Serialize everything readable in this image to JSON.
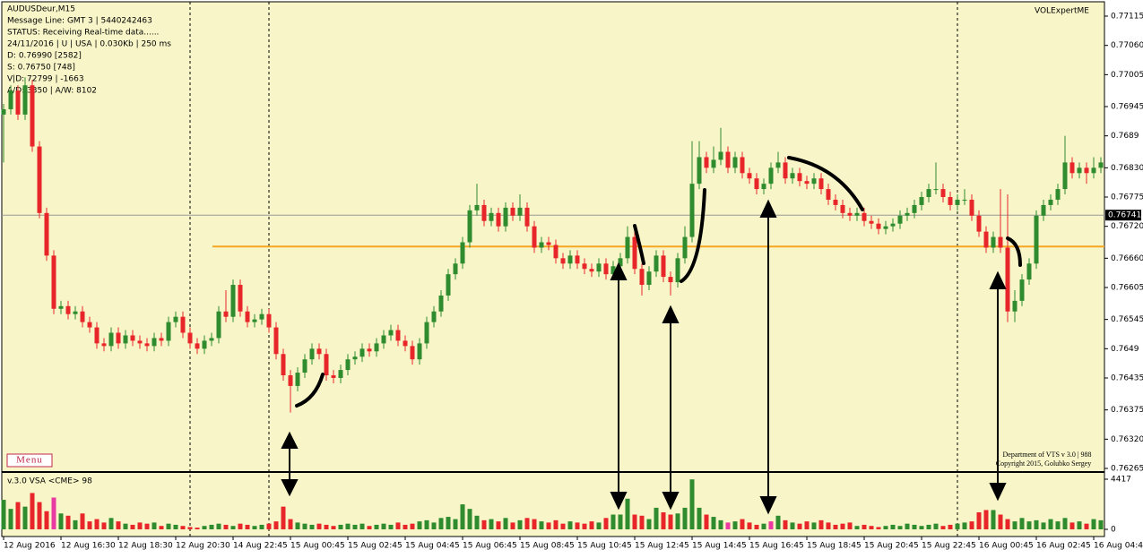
{
  "chart_data": {
    "type": "candlestick",
    "symbol": "AUDUSDeur,M15",
    "expert": "VOLExpertME",
    "info_lines": [
      "Message Line: GMT 3 | 5440242463",
      "STATUS:  Receiving Real-time data......",
      "24/11/2016 | U | USA | 0.030Kb | 250 ms",
      "D: 0.76990  [2582]",
      "S: 0.76750  [748]",
      "V|D: 72799 | -1663",
      "A/D: 3350 | A/W: 8102"
    ],
    "menu": "Menu",
    "credits": [
      "Department of VTS  v 3.0 | 988",
      "Copyright 2015, Golubko Sergey"
    ],
    "volume_title": "v.3.0 VSA  <CME> 98",
    "x_labels": [
      "12 Aug 2016",
      "12 Aug 16:30",
      "12 Aug 18:30",
      "12 Aug 20:30",
      "14 Aug 22:45",
      "15 Aug 00:45",
      "15 Aug 02:45",
      "15 Aug 04:45",
      "15 Aug 06:45",
      "15 Aug 08:45",
      "15 Aug 10:45",
      "15 Aug 12:45",
      "15 Aug 14:45",
      "15 Aug 16:45",
      "15 Aug 18:45",
      "15 Aug 20:45",
      "15 Aug 22:45",
      "16 Aug 00:45",
      "16 Aug 02:45",
      "16 Aug 04:45"
    ],
    "ylim": [
      0.76265,
      0.77115
    ],
    "yticks": [
      0.77115,
      {
        "value": 0.7706,
        "label": "0.77060"
      },
      0.77005,
      0.76945,
      0.7689,
      {
        "value": 0.7683,
        "label": "0.76830"
      },
      0.76775,
      {
        "value": 0.7672,
        "label": "0.76720"
      },
      {
        "value": 0.7666,
        "label": "0.76660"
      },
      0.76605,
      0.76545,
      0.7649,
      0.76435,
      0.76375,
      {
        "value": 0.7632,
        "label": "0.76320"
      },
      0.76265
    ],
    "current_price": 0.76741,
    "level_line": 0.76682,
    "level_color": "#f5a623",
    "up_color": "#2e8b2e",
    "down_color": "#e8262a",
    "highlight_color": "#e83aa0",
    "highlight_bars": [
      7,
      101,
      107
    ],
    "open": [
      0.7693,
      0.7694,
      0.76975,
      0.7693,
      0.76985,
      0.7687,
      0.76745,
      0.76665,
      0.76565,
      0.7657,
      0.76555,
      0.7656,
      0.7654,
      0.7653,
      0.765,
      0.76495,
      0.7652,
      0.765,
      0.76515,
      0.76505,
      0.765,
      0.76495,
      0.7651,
      0.76505,
      0.7654,
      0.7655,
      0.7652,
      0.765,
      0.7649,
      0.76505,
      0.7651,
      0.7656,
      0.7655,
      0.7661,
      0.7656,
      0.7654,
      0.76545,
      0.76555,
      0.7653,
      0.7648,
      0.7644,
      0.7642,
      0.76445,
      0.7647,
      0.7649,
      0.7648,
      0.7644,
      0.76435,
      0.7645,
      0.7647,
      0.76475,
      0.7649,
      0.76485,
      0.765,
      0.76515,
      0.76525,
      0.76505,
      0.76495,
      0.7647,
      0.765,
      0.7654,
      0.7656,
      0.7659,
      0.7663,
      0.7665,
      0.7669,
      0.7675,
      0.7676,
      0.7673,
      0.76745,
      0.7672,
      0.76755,
      0.7674,
      0.76755,
      0.7672,
      0.7668,
      0.7669,
      0.76685,
      0.7666,
      0.7665,
      0.76665,
      0.7665,
      0.7664,
      0.76635,
      0.7665,
      0.7663,
      0.76645,
      0.7666,
      0.767,
      0.7664,
      0.7661,
      0.76635,
      0.76665,
      0.76625,
      0.76615,
      0.7666,
      0.767,
      0.768,
      0.7685,
      0.7683,
      0.76845,
      0.7686,
      0.7683,
      0.7685,
      0.7682,
      0.7681,
      0.7679,
      0.768,
      0.7683,
      0.7684,
      0.7681,
      0.7682,
      0.76805,
      0.768,
      0.7681,
      0.7679,
      0.7677,
      0.7676,
      0.76745,
      0.7674,
      0.76745,
      0.7673,
      0.76725,
      0.76715,
      0.7672,
      0.76725,
      0.7674,
      0.76745,
      0.7676,
      0.76775,
      0.7679,
      0.7679,
      0.76775,
      0.7676,
      0.7677,
      0.7677,
      0.7674,
      0.7671,
      0.7668,
      0.767,
      0.7668,
      0.7656,
      0.7658,
      0.7662,
      0.7665,
      0.7674,
      0.7676,
      0.7677,
      0.7679,
      0.7684,
      0.7682,
      0.7683,
      0.7682,
      0.7683
    ],
    "high": [
      0.7695,
      0.76985,
      0.76985,
      0.77,
      0.76995,
      0.7688,
      0.76755,
      0.76675,
      0.7658,
      0.7658,
      0.7657,
      0.7657,
      0.7655,
      0.7654,
      0.7651,
      0.7653,
      0.7653,
      0.76525,
      0.76525,
      0.76515,
      0.7651,
      0.7652,
      0.7652,
      0.7655,
      0.7656,
      0.7656,
      0.7653,
      0.7651,
      0.76515,
      0.7652,
      0.7657,
      0.766,
      0.7662,
      0.7662,
      0.7657,
      0.76555,
      0.76565,
      0.76565,
      0.7654,
      0.7649,
      0.7645,
      0.76455,
      0.7648,
      0.765,
      0.765,
      0.7649,
      0.7645,
      0.7646,
      0.7648,
      0.76485,
      0.765,
      0.765,
      0.7651,
      0.76525,
      0.76535,
      0.76535,
      0.76515,
      0.76505,
      0.7651,
      0.7655,
      0.7657,
      0.766,
      0.7664,
      0.7666,
      0.767,
      0.7676,
      0.768,
      0.7677,
      0.76755,
      0.76755,
      0.76765,
      0.76765,
      0.7678,
      0.76765,
      0.7673,
      0.767,
      0.767,
      0.76695,
      0.7667,
      0.76675,
      0.76675,
      0.7666,
      0.7665,
      0.7666,
      0.7666,
      0.76655,
      0.7667,
      0.7672,
      0.7671,
      0.7665,
      0.76645,
      0.76675,
      0.76675,
      0.76635,
      0.7667,
      0.7672,
      0.7688,
      0.7688,
      0.7686,
      0.7687,
      0.76905,
      0.7687,
      0.7686,
      0.7686,
      0.7683,
      0.7682,
      0.7681,
      0.7684,
      0.7686,
      0.7685,
      0.7683,
      0.7683,
      0.76815,
      0.7682,
      0.7682,
      0.768,
      0.7678,
      0.7677,
      0.76755,
      0.76755,
      0.76755,
      0.7674,
      0.76735,
      0.7673,
      0.76735,
      0.7675,
      0.76755,
      0.7677,
      0.76785,
      0.768,
      0.7684,
      0.768,
      0.76785,
      0.7678,
      0.7679,
      0.7678,
      0.7675,
      0.7672,
      0.7671,
      0.7679,
      0.7678,
      0.766,
      0.7663,
      0.7666,
      0.7675,
      0.7677,
      0.7678,
      0.768,
      0.7689,
      0.7685,
      0.7684,
      0.7684,
      0.7685,
      0.7685
    ],
    "low": [
      0.7684,
      0.7693,
      0.7692,
      0.7692,
      0.7686,
      0.76735,
      0.76655,
      0.76555,
      0.76555,
      0.76545,
      0.76545,
      0.7653,
      0.7652,
      0.7649,
      0.76485,
      0.76485,
      0.7649,
      0.7649,
      0.76495,
      0.7649,
      0.76485,
      0.76485,
      0.76495,
      0.76495,
      0.7653,
      0.7651,
      0.7649,
      0.7648,
      0.7648,
      0.76495,
      0.765,
      0.7654,
      0.7654,
      0.7655,
      0.7653,
      0.7653,
      0.76535,
      0.7652,
      0.7647,
      0.7643,
      0.7637,
      0.7641,
      0.76435,
      0.7646,
      0.7647,
      0.7643,
      0.76425,
      0.76425,
      0.7644,
      0.7646,
      0.76465,
      0.76475,
      0.76475,
      0.7649,
      0.76505,
      0.76495,
      0.76485,
      0.7646,
      0.7646,
      0.7649,
      0.7653,
      0.7655,
      0.7658,
      0.7662,
      0.7664,
      0.7668,
      0.7674,
      0.7672,
      0.7672,
      0.7671,
      0.7671,
      0.7673,
      0.7673,
      0.7671,
      0.7667,
      0.7667,
      0.76675,
      0.7665,
      0.7664,
      0.7664,
      0.7664,
      0.7663,
      0.76625,
      0.76625,
      0.7662,
      0.7662,
      0.76635,
      0.7665,
      0.7663,
      0.7659,
      0.766,
      0.76625,
      0.76615,
      0.7659,
      0.76605,
      0.7665,
      0.7669,
      0.7679,
      0.7682,
      0.7682,
      0.76835,
      0.7682,
      0.7682,
      0.7681,
      0.768,
      0.7678,
      0.7678,
      0.7679,
      0.7682,
      0.768,
      0.768,
      0.76795,
      0.7679,
      0.7679,
      0.7678,
      0.7676,
      0.7675,
      0.76735,
      0.7673,
      0.7673,
      0.7672,
      0.76715,
      0.76705,
      0.76705,
      0.7671,
      0.76715,
      0.7673,
      0.76735,
      0.7675,
      0.76765,
      0.7678,
      0.76765,
      0.7675,
      0.7675,
      0.7676,
      0.7673,
      0.767,
      0.7667,
      0.7667,
      0.7667,
      0.7654,
      0.7654,
      0.7657,
      0.7661,
      0.7664,
      0.7673,
      0.7675,
      0.7676,
      0.7678,
      0.7681,
      0.7681,
      0.768,
      0.7681,
      0.7682
    ],
    "close": [
      0.7694,
      0.76975,
      0.7693,
      0.76985,
      0.7687,
      0.76745,
      0.76665,
      0.76565,
      0.7657,
      0.76555,
      0.7656,
      0.7654,
      0.7653,
      0.765,
      0.76495,
      0.7652,
      0.765,
      0.76515,
      0.76505,
      0.765,
      0.76495,
      0.7651,
      0.76505,
      0.7654,
      0.7655,
      0.7652,
      0.765,
      0.7649,
      0.76505,
      0.7651,
      0.7656,
      0.7655,
      0.7661,
      0.7656,
      0.7654,
      0.76545,
      0.76555,
      0.7653,
      0.7648,
      0.7644,
      0.7642,
      0.76445,
      0.7647,
      0.7649,
      0.7648,
      0.7644,
      0.76435,
      0.7645,
      0.7647,
      0.76475,
      0.7649,
      0.76485,
      0.765,
      0.76515,
      0.76525,
      0.76505,
      0.76495,
      0.7647,
      0.765,
      0.7654,
      0.7656,
      0.7659,
      0.7663,
      0.7665,
      0.7669,
      0.7675,
      0.7676,
      0.7673,
      0.76745,
      0.7672,
      0.76755,
      0.7674,
      0.76755,
      0.7672,
      0.7668,
      0.7669,
      0.76685,
      0.7666,
      0.7665,
      0.76665,
      0.7665,
      0.7664,
      0.76635,
      0.7665,
      0.7663,
      0.76645,
      0.7666,
      0.767,
      0.7664,
      0.7661,
      0.76635,
      0.76665,
      0.76625,
      0.76615,
      0.7666,
      0.767,
      0.768,
      0.7685,
      0.7683,
      0.76845,
      0.7686,
      0.7683,
      0.7685,
      0.7682,
      0.7681,
      0.7679,
      0.768,
      0.7683,
      0.7684,
      0.7681,
      0.7682,
      0.76805,
      0.768,
      0.7681,
      0.7679,
      0.7677,
      0.7676,
      0.76745,
      0.7674,
      0.76745,
      0.7673,
      0.76725,
      0.76715,
      0.7672,
      0.76725,
      0.7674,
      0.76745,
      0.7676,
      0.76775,
      0.7679,
      0.7679,
      0.76775,
      0.7676,
      0.7677,
      0.7677,
      0.7674,
      0.7671,
      0.7668,
      0.767,
      0.7668,
      0.7656,
      0.7658,
      0.7662,
      0.7665,
      0.7674,
      0.7676,
      0.7677,
      0.7679,
      0.7684,
      0.7682,
      0.7683,
      0.7682,
      0.7683,
      0.7684
    ],
    "volume": [
      2600,
      1800,
      2400,
      2000,
      3200,
      2400,
      1600,
      2800,
      1400,
      1200,
      800,
      1400,
      700,
      900,
      600,
      1000,
      700,
      500,
      400,
      600,
      500,
      600,
      300,
      500,
      400,
      300,
      200,
      150,
      300,
      400,
      500,
      400,
      300,
      500,
      400,
      300,
      400,
      500,
      700,
      2000,
      900,
      600,
      500,
      400,
      500,
      400,
      300,
      400,
      500,
      400,
      500,
      300,
      400,
      500,
      400,
      600,
      400,
      500,
      700,
      800,
      600,
      1000,
      1100,
      900,
      2200,
      1800,
      1200,
      800,
      900,
      700,
      1000,
      600,
      800,
      1000,
      900,
      700,
      600,
      800,
      500,
      700,
      600,
      500,
      700,
      600,
      1000,
      1300,
      1300,
      2700,
      1300,
      1200,
      900,
      1900,
      1500,
      1300,
      1400,
      1900,
      4400,
      1900,
      1300,
      1100,
      800,
      600,
      700,
      900,
      600,
      400,
      500,
      700,
      1200,
      800,
      600,
      500,
      700,
      600,
      800,
      600,
      400,
      500,
      600,
      300,
      400,
      300,
      200,
      300,
      400,
      300,
      500,
      400,
      300,
      400,
      500,
      300,
      400,
      500,
      600,
      700,
      1500,
      1700,
      1700,
      1300,
      900,
      700,
      1000,
      700,
      800,
      600,
      900,
      700,
      1000,
      600,
      700,
      500,
      900,
      800
    ],
    "vlim": [
      0,
      4417
    ],
    "vticks": [
      4417,
      0
    ]
  }
}
